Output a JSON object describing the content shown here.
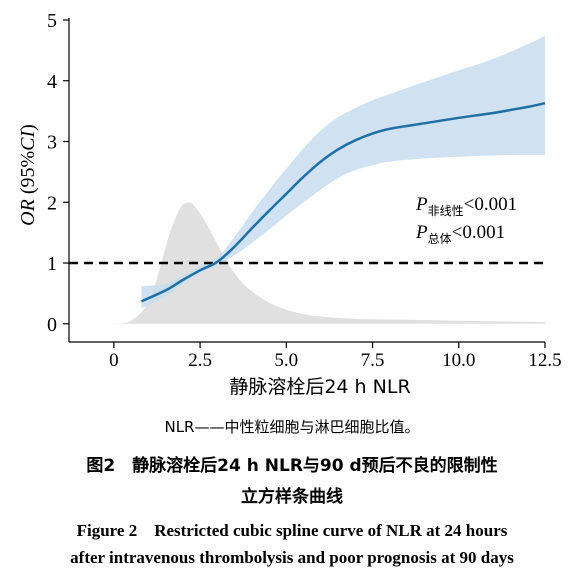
{
  "chart_data": {
    "type": "line",
    "xlabel": "静脉溶栓后24 h NLR",
    "ylabel": "OR (95%CI)",
    "ylabel_parts": {
      "or": "OR",
      "open": " (95%",
      "ci": "CI",
      "close": ")"
    },
    "xlim": [
      -1.3,
      12.5
    ],
    "ylim": [
      -0.3,
      5
    ],
    "x_ticks": [
      0,
      2.5,
      5.0,
      7.5,
      10.0,
      12.5
    ],
    "x_tick_labels": [
      "0",
      "2.5",
      "5.0",
      "7.5",
      "10.0",
      "12.5"
    ],
    "y_ticks": [
      0,
      1,
      2,
      3,
      4,
      5
    ],
    "y_tick_labels": [
      "0",
      "1",
      "2",
      "3",
      "4",
      "5"
    ],
    "reference_line": {
      "y": 1,
      "style": "dashed"
    },
    "series": [
      {
        "kind": "spline",
        "x": [
          0.8,
          1.5,
          2.0,
          2.5,
          3.0,
          3.5,
          4.0,
          4.5,
          5.0,
          5.5,
          6.0,
          6.5,
          7.0,
          7.5,
          8.0,
          9.0,
          10.0,
          11.0,
          12.0,
          12.5
        ],
        "y": [
          0.37,
          0.55,
          0.72,
          0.88,
          1.02,
          1.27,
          1.57,
          1.86,
          2.14,
          2.42,
          2.67,
          2.87,
          3.02,
          3.13,
          3.21,
          3.3,
          3.39,
          3.47,
          3.57,
          3.63
        ],
        "ci_lower": [
          0.25,
          0.45,
          0.65,
          0.83,
          0.97,
          1.13,
          1.33,
          1.55,
          1.78,
          2.0,
          2.21,
          2.4,
          2.53,
          2.61,
          2.67,
          2.72,
          2.75,
          2.77,
          2.78,
          2.78
        ],
        "ci_upper": [
          0.62,
          0.66,
          0.8,
          0.95,
          1.09,
          1.43,
          1.83,
          2.2,
          2.55,
          2.89,
          3.18,
          3.4,
          3.55,
          3.68,
          3.78,
          3.98,
          4.17,
          4.36,
          4.6,
          4.74
        ]
      },
      {
        "kind": "density",
        "x": [
          -0.1,
          0.5,
          1.0,
          1.3,
          1.6,
          1.9,
          2.1,
          2.3,
          2.6,
          2.9,
          3.2,
          3.5,
          3.8,
          4.2,
          4.6,
          5.0,
          5.5,
          6.0,
          7.0,
          8.0,
          9.0,
          10.0,
          11.0,
          12.5
        ],
        "y": [
          0.0,
          0.05,
          0.35,
          0.85,
          1.45,
          1.88,
          1.99,
          1.96,
          1.73,
          1.42,
          1.1,
          0.83,
          0.63,
          0.45,
          0.32,
          0.23,
          0.16,
          0.12,
          0.08,
          0.07,
          0.06,
          0.05,
          0.04,
          0.03
        ]
      }
    ],
    "annotations": [
      {
        "p": "P",
        "sub": "非线性",
        "rest": "<0.001"
      },
      {
        "p": "P",
        "sub": "总体",
        "rest": "<0.001"
      }
    ],
    "colors": {
      "line": "#1f6fa6",
      "ci_band": "#c8ddef",
      "density": "#e0e0e0",
      "axis": "#000000"
    }
  },
  "caption": {
    "note": "NLR——中性粒细胞与淋巴细胞比值。",
    "cn_line1": "图2　静脉溶栓后24 h NLR与90 d预后不良的限制性",
    "cn_line2": "立方样条曲线",
    "en_line1": "Figure 2　Restricted cubic spline curve of NLR at 24 hours",
    "en_line2": "after intravenous thrombolysis and poor prognosis at 90 days"
  }
}
